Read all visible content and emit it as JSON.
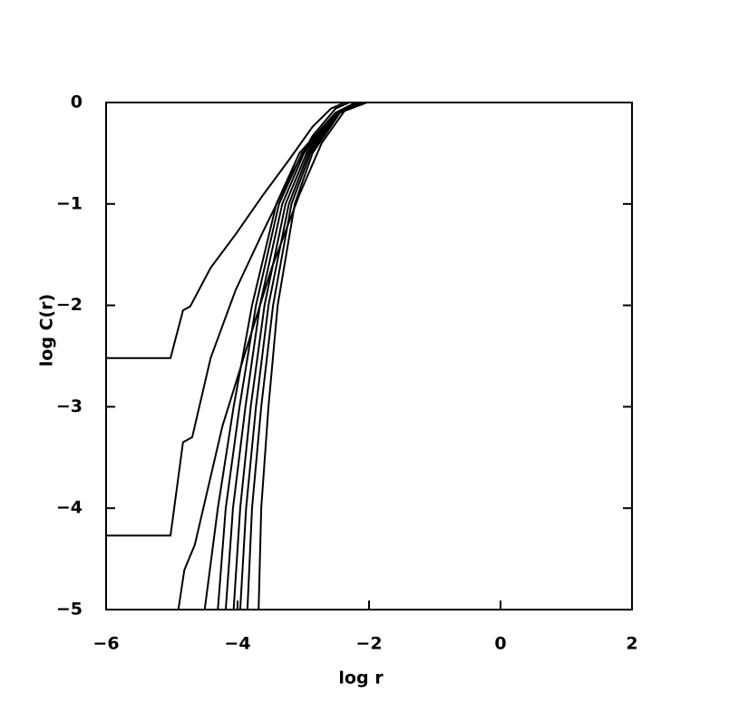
{
  "chart_data": {
    "type": "line",
    "x_label": "log  r",
    "y_label": "log  C(r)",
    "xlim": [
      -6,
      2
    ],
    "ylim": [
      -5,
      0
    ],
    "xticks": [
      {
        "value": -6,
        "label": "−6"
      },
      {
        "value": -4,
        "label": "−4"
      },
      {
        "value": -2,
        "label": "−2"
      },
      0,
      2
    ],
    "yticks": [
      0,
      {
        "value": -1,
        "label": "−1"
      },
      {
        "value": -2,
        "label": "−2"
      },
      {
        "value": -3,
        "label": "−3"
      },
      {
        "value": -4,
        "label": "−4"
      },
      {
        "value": -5,
        "label": "−5"
      }
    ],
    "color": "#000000",
    "series": [
      {
        "x": [
          -6,
          -5.02,
          -4.83,
          -4.72,
          -4.41,
          -4.03,
          -3.61,
          -3.2,
          -2.86,
          -2.58,
          -2.37,
          2
        ],
        "values": [
          -2.52,
          -2.52,
          -2.05,
          -2.01,
          -1.63,
          -1.3,
          -0.91,
          -0.55,
          -0.24,
          -0.06,
          0,
          0
        ]
      },
      {
        "x": [
          -6,
          -5.02,
          -4.83,
          -4.69,
          -4.41,
          -4.03,
          -3.61,
          -3.2,
          -2.86,
          -2.51,
          -2.3,
          2
        ],
        "values": [
          -4.27,
          -4.27,
          -3.35,
          -3.3,
          -2.52,
          -1.85,
          -1.27,
          -0.73,
          -0.33,
          -0.06,
          0,
          0
        ]
      },
      {
        "x": [
          -4.9,
          -4.81,
          -4.65,
          -4.23,
          -3.89,
          -3.48,
          -3.06,
          -2.72,
          -2.37,
          -2.2,
          2
        ],
        "values": [
          -5,
          -4.61,
          -4.36,
          -3.19,
          -2.48,
          -1.63,
          -0.91,
          -0.4,
          -0.08,
          0,
          0
        ]
      },
      {
        "x": [
          -4.5,
          -4.3,
          -4.06,
          -3.78,
          -3.41,
          -3.06,
          -2.51,
          -2.2,
          2
        ],
        "values": [
          -5,
          -4,
          -3,
          -2,
          -1,
          -0.5,
          -0.1,
          0,
          0
        ]
      },
      {
        "x": [
          -4.3,
          -4.18,
          -3.97,
          -3.72,
          -3.37,
          -3.02,
          -2.49,
          -2.17,
          2
        ],
        "values": [
          -5,
          -4,
          -3,
          -2,
          -1,
          -0.5,
          -0.1,
          0,
          0
        ]
      },
      {
        "x": [
          -4.18,
          -4.07,
          -3.88,
          -3.66,
          -3.32,
          -2.99,
          -2.48,
          -2.14,
          2
        ],
        "values": [
          -5,
          -4,
          -3,
          -2,
          -1,
          -0.5,
          -0.1,
          0,
          0
        ]
      },
      {
        "x": [
          -4.06,
          -3.96,
          -3.8,
          -3.59,
          -3.27,
          -2.95,
          -2.47,
          -2.11,
          2
        ],
        "values": [
          -5,
          -4,
          -3,
          -2,
          -1,
          -0.5,
          -0.1,
          0,
          0
        ]
      },
      {
        "x": [
          -3.96,
          -3.87,
          -3.72,
          -3.53,
          -3.22,
          -2.92,
          -2.46,
          -2.08,
          2
        ],
        "values": [
          -5,
          -4,
          -3,
          -2,
          -1,
          -0.5,
          -0.1,
          0,
          0
        ]
      },
      {
        "x": [
          -3.85,
          -3.78,
          -3.64,
          -3.46,
          -3.18,
          -2.89,
          -2.45,
          -2.06,
          2
        ],
        "values": [
          -5,
          -4,
          -3,
          -2,
          -1,
          -0.5,
          -0.1,
          0,
          0
        ]
      },
      {
        "x": [
          -3.68,
          -3.64,
          -3.53,
          -3.39,
          -3.13,
          -2.86,
          -2.44,
          -2.03,
          2
        ],
        "values": [
          -5,
          -4,
          -3,
          -2,
          -1,
          -0.5,
          -0.1,
          0,
          0
        ]
      }
    ]
  }
}
